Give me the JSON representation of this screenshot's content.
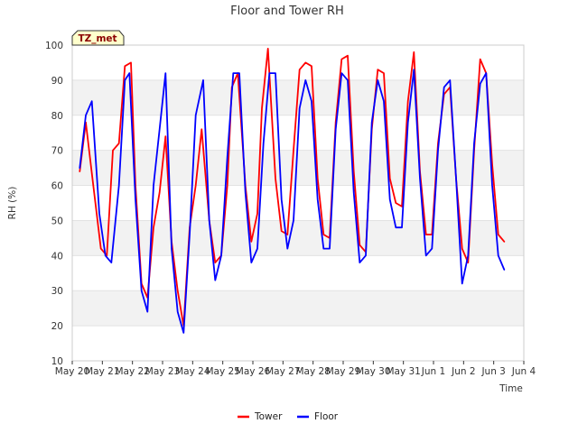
{
  "chart_data": {
    "type": "line",
    "title": "Floor and Tower RH",
    "xlabel": "Time",
    "ylabel": "RH (%)",
    "ylim": [
      10,
      100
    ],
    "xlim": [
      0,
      15
    ],
    "yticks": [
      10,
      20,
      30,
      40,
      50,
      60,
      70,
      80,
      90,
      100
    ],
    "x_tick_labels": [
      "May 20",
      "May 21",
      "May 22",
      "May 23",
      "May 24",
      "May 25",
      "May 26",
      "May 27",
      "May 28",
      "May 29",
      "May 30",
      "May 31",
      "Jun 1",
      "Jun 2",
      "Jun 3",
      "Jun 4"
    ],
    "grid": true,
    "legend_position": "bottom-center",
    "annotation": "TZ_met",
    "series": [
      {
        "name": "Tower",
        "color": "#ff0000",
        "x": [
          0.25,
          0.45,
          0.7,
          0.95,
          1.15,
          1.35,
          1.55,
          1.75,
          1.95,
          2.1,
          2.3,
          2.5,
          2.7,
          2.9,
          3.1,
          3.3,
          3.5,
          3.7,
          3.9,
          4.1,
          4.3,
          4.55,
          4.75,
          4.95,
          5.15,
          5.3,
          5.5,
          5.75,
          5.95,
          6.15,
          6.3,
          6.5,
          6.75,
          6.95,
          7.15,
          7.35,
          7.55,
          7.75,
          7.95,
          8.15,
          8.35,
          8.55,
          8.75,
          8.95,
          9.15,
          9.35,
          9.55,
          9.75,
          9.95,
          10.15,
          10.35,
          10.55,
          10.75,
          10.95,
          11.15,
          11.35,
          11.55,
          11.75,
          11.95,
          12.15,
          12.35,
          12.55,
          12.75,
          12.95,
          13.15,
          13.35,
          13.55,
          13.75,
          13.95,
          14.15,
          14.35
        ],
        "y": [
          64,
          78,
          60,
          42,
          40,
          70,
          72,
          94,
          95,
          60,
          32,
          28,
          48,
          58,
          74,
          44,
          30,
          20,
          48,
          60,
          76,
          50,
          38,
          40,
          60,
          88,
          92,
          60,
          44,
          52,
          82,
          99,
          62,
          47,
          46,
          70,
          93,
          95,
          94,
          62,
          46,
          45,
          78,
          96,
          97,
          64,
          43,
          41,
          76,
          93,
          92,
          62,
          55,
          54,
          84,
          98,
          64,
          46,
          46,
          72,
          86,
          88,
          62,
          42,
          38,
          70,
          96,
          92,
          66,
          46,
          44
        ]
      },
      {
        "name": "Floor",
        "color": "#0000ff",
        "x": [
          0.25,
          0.45,
          0.65,
          0.9,
          1.1,
          1.3,
          1.55,
          1.75,
          1.9,
          2.1,
          2.3,
          2.5,
          2.7,
          2.9,
          3.1,
          3.3,
          3.5,
          3.7,
          3.9,
          4.1,
          4.35,
          4.55,
          4.75,
          4.95,
          5.15,
          5.35,
          5.55,
          5.75,
          5.95,
          6.15,
          6.35,
          6.55,
          6.75,
          6.95,
          7.15,
          7.35,
          7.55,
          7.75,
          7.95,
          8.15,
          8.35,
          8.55,
          8.75,
          8.95,
          9.15,
          9.35,
          9.55,
          9.75,
          9.95,
          10.15,
          10.35,
          10.55,
          10.75,
          10.95,
          11.15,
          11.35,
          11.55,
          11.75,
          11.95,
          12.15,
          12.35,
          12.55,
          12.75,
          12.95,
          13.15,
          13.35,
          13.55,
          13.75,
          13.95,
          14.15,
          14.35
        ],
        "y": [
          65,
          80,
          84,
          52,
          40,
          38,
          60,
          90,
          92,
          56,
          30,
          24,
          60,
          76,
          92,
          42,
          24,
          18,
          46,
          80,
          90,
          50,
          33,
          40,
          68,
          92,
          92,
          58,
          38,
          42,
          72,
          92,
          92,
          56,
          42,
          50,
          82,
          90,
          84,
          56,
          42,
          42,
          76,
          92,
          90,
          58,
          38,
          40,
          78,
          90,
          84,
          56,
          48,
          48,
          78,
          93,
          62,
          40,
          42,
          70,
          88,
          90,
          62,
          32,
          40,
          72,
          89,
          92,
          60,
          40,
          36
        ]
      }
    ]
  }
}
